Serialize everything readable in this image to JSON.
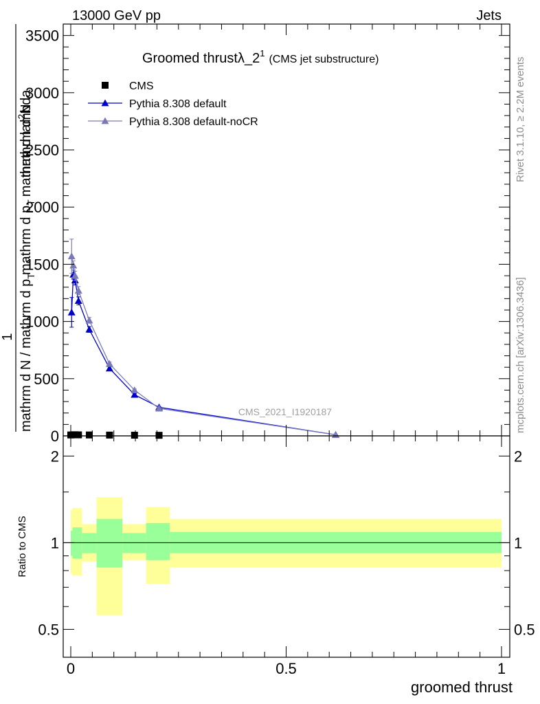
{
  "header": {
    "left": "13000 GeV pp",
    "right": "Jets"
  },
  "title": {
    "main": "Groomed thrustλ_2",
    "superscript": "1",
    "sub": "(CMS jet substructure)"
  },
  "side_labels": {
    "rivet": "Rivet 3.1.10, ≥ 2.2M events",
    "mcplots": "mcplots.cern.ch [arXiv:1306.3436]"
  },
  "watermark": "CMS_2021_I1920187",
  "y_axis_label": {
    "one": "1",
    "denominator": "mathrm d N / mathrm d p",
    "denominator_sub": "T",
    "numerator_line1": "mathrm d",
    "numerator_sup": "2",
    "numerator_line1b": "N",
    "numerator_line2": "mathrm d p",
    "numerator_line2_sub": "T",
    "numerator_line2b": "mathrm d lambda"
  },
  "ratio_ylabel": "Ratio to CMS",
  "x_axis_label": "groomed thrust",
  "chart_data": {
    "type": "line",
    "xlabel": "groomed thrust",
    "xlim": [
      0,
      1
    ],
    "main_panel": {
      "ylim": [
        0,
        3600
      ],
      "yticks": [
        0,
        500,
        1000,
        1500,
        2000,
        2500,
        3000,
        3500
      ],
      "ytick_labels": [
        "0",
        "500",
        "1000",
        "1500",
        "2000",
        "2500",
        "3000",
        "3500"
      ],
      "xticks": [
        0,
        0.5,
        1
      ],
      "xtick_labels": [
        "0",
        "0.5",
        "1"
      ]
    },
    "ratio_panel": {
      "ylim": [
        0.4,
        2.35
      ],
      "log_scale": true,
      "yticks": [
        0.5,
        1,
        2
      ],
      "ytick_labels": [
        "0.5",
        "1",
        "2"
      ]
    },
    "series": [
      {
        "name": "CMS",
        "color": "#000000",
        "marker": "square",
        "x": [
          0.0,
          0.005,
          0.01,
          0.018,
          0.043,
          0.09,
          0.148,
          0.205
        ],
        "y": [
          8,
          9,
          10,
          9,
          8,
          7,
          6,
          5
        ]
      },
      {
        "name": "Pythia 8.308 default",
        "color": "#0000cc",
        "marker": "triangle",
        "x": [
          0.002,
          0.006,
          0.01,
          0.018,
          0.043,
          0.09,
          0.148,
          0.205,
          0.615
        ],
        "y": [
          1080,
          1410,
          1360,
          1180,
          930,
          590,
          360,
          250,
          10
        ],
        "yerr": [
          130,
          40,
          40,
          35,
          25,
          15,
          10,
          6,
          2
        ]
      },
      {
        "name": "Pythia 8.308 default-noCR",
        "color": "#7a7ab8",
        "marker": "triangle",
        "x": [
          0.002,
          0.006,
          0.01,
          0.018,
          0.043,
          0.09,
          0.148,
          0.205,
          0.615
        ],
        "y": [
          1570,
          1490,
          1400,
          1270,
          1010,
          630,
          400,
          240,
          10
        ],
        "yerr": [
          150,
          40,
          40,
          35,
          25,
          15,
          10,
          6,
          2
        ]
      }
    ],
    "ratio_bands": {
      "reference": "CMS",
      "inner_color": "#99ff99",
      "outer_color": "#ffff99",
      "bins": [
        {
          "x0": 0.0,
          "x1": 0.004,
          "in_lo": 0.9,
          "in_hi": 1.1,
          "out_lo": 0.78,
          "out_hi": 1.3
        },
        {
          "x0": 0.004,
          "x1": 0.026,
          "in_lo": 0.88,
          "in_hi": 1.13,
          "out_lo": 0.77,
          "out_hi": 1.32
        },
        {
          "x0": 0.026,
          "x1": 0.06,
          "in_lo": 0.92,
          "in_hi": 1.08,
          "out_lo": 0.86,
          "out_hi": 1.16
        },
        {
          "x0": 0.06,
          "x1": 0.12,
          "in_lo": 0.82,
          "in_hi": 1.21,
          "out_lo": 0.56,
          "out_hi": 1.44
        },
        {
          "x0": 0.12,
          "x1": 0.175,
          "in_lo": 0.92,
          "in_hi": 1.08,
          "out_lo": 0.87,
          "out_hi": 1.16
        },
        {
          "x0": 0.175,
          "x1": 0.23,
          "in_lo": 0.87,
          "in_hi": 1.17,
          "out_lo": 0.72,
          "out_hi": 1.33
        },
        {
          "x0": 0.23,
          "x1": 1.0,
          "in_lo": 0.92,
          "in_hi": 1.09,
          "out_lo": 0.82,
          "out_hi": 1.21
        }
      ]
    }
  }
}
